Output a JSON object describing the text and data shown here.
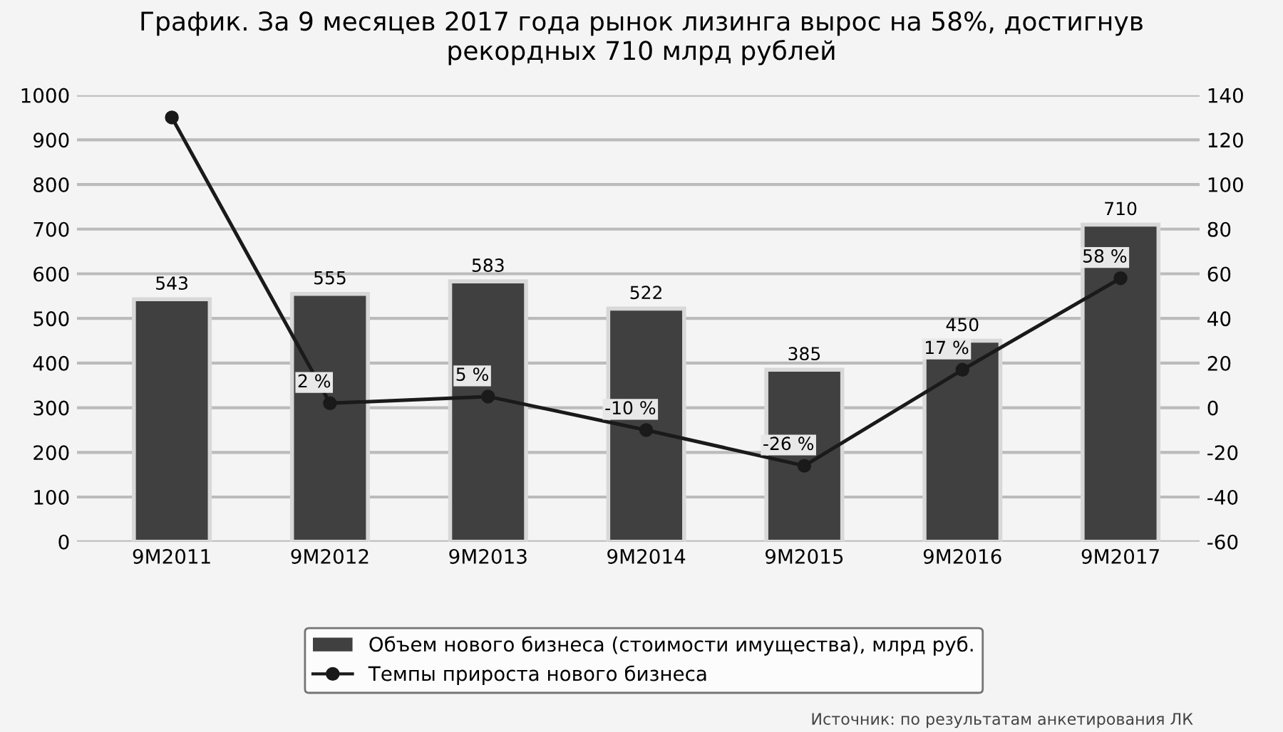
{
  "chart_data": {
    "type": "bar",
    "title": "График. За 9 месяцев 2017 года рынок лизинга вырос на 58%, достигнув\nрекордных 710 млрд рублей",
    "categories": [
      "9M2011",
      "9M2012",
      "9M2013",
      "9M2014",
      "9M2015",
      "9M2016",
      "9M2017"
    ],
    "series": [
      {
        "name": "Объем нового бизнеса (стоимости имущества), млрд руб.",
        "color": "#404040",
        "values": [
          543,
          555,
          583,
          522,
          385,
          450,
          710
        ],
        "data_labels": true
      },
      {
        "name": "Темпы прироста нового бизнеса",
        "type": "line",
        "axis": "y2",
        "color": "#1a1a1a",
        "marker": "circle",
        "values": [
          130,
          2,
          5,
          -10,
          -26,
          17,
          58
        ],
        "value_labels": [
          null,
          "2 %",
          "5 %",
          "-10 %",
          "-26 %",
          "17 %",
          "58 %"
        ]
      }
    ],
    "ylim": [
      0,
      1000
    ],
    "yticks": [
      0,
      100,
      200,
      300,
      400,
      500,
      600,
      700,
      800,
      900,
      1000
    ],
    "y2lim": [
      -60,
      140
    ],
    "y2ticks": [
      -60,
      -40,
      -20,
      0,
      20,
      40,
      60,
      80,
      100,
      120,
      140
    ],
    "grid": "y",
    "legend": "bottom",
    "annotations": [
      "Источник: по результатам анкетирования ЛК"
    ]
  }
}
